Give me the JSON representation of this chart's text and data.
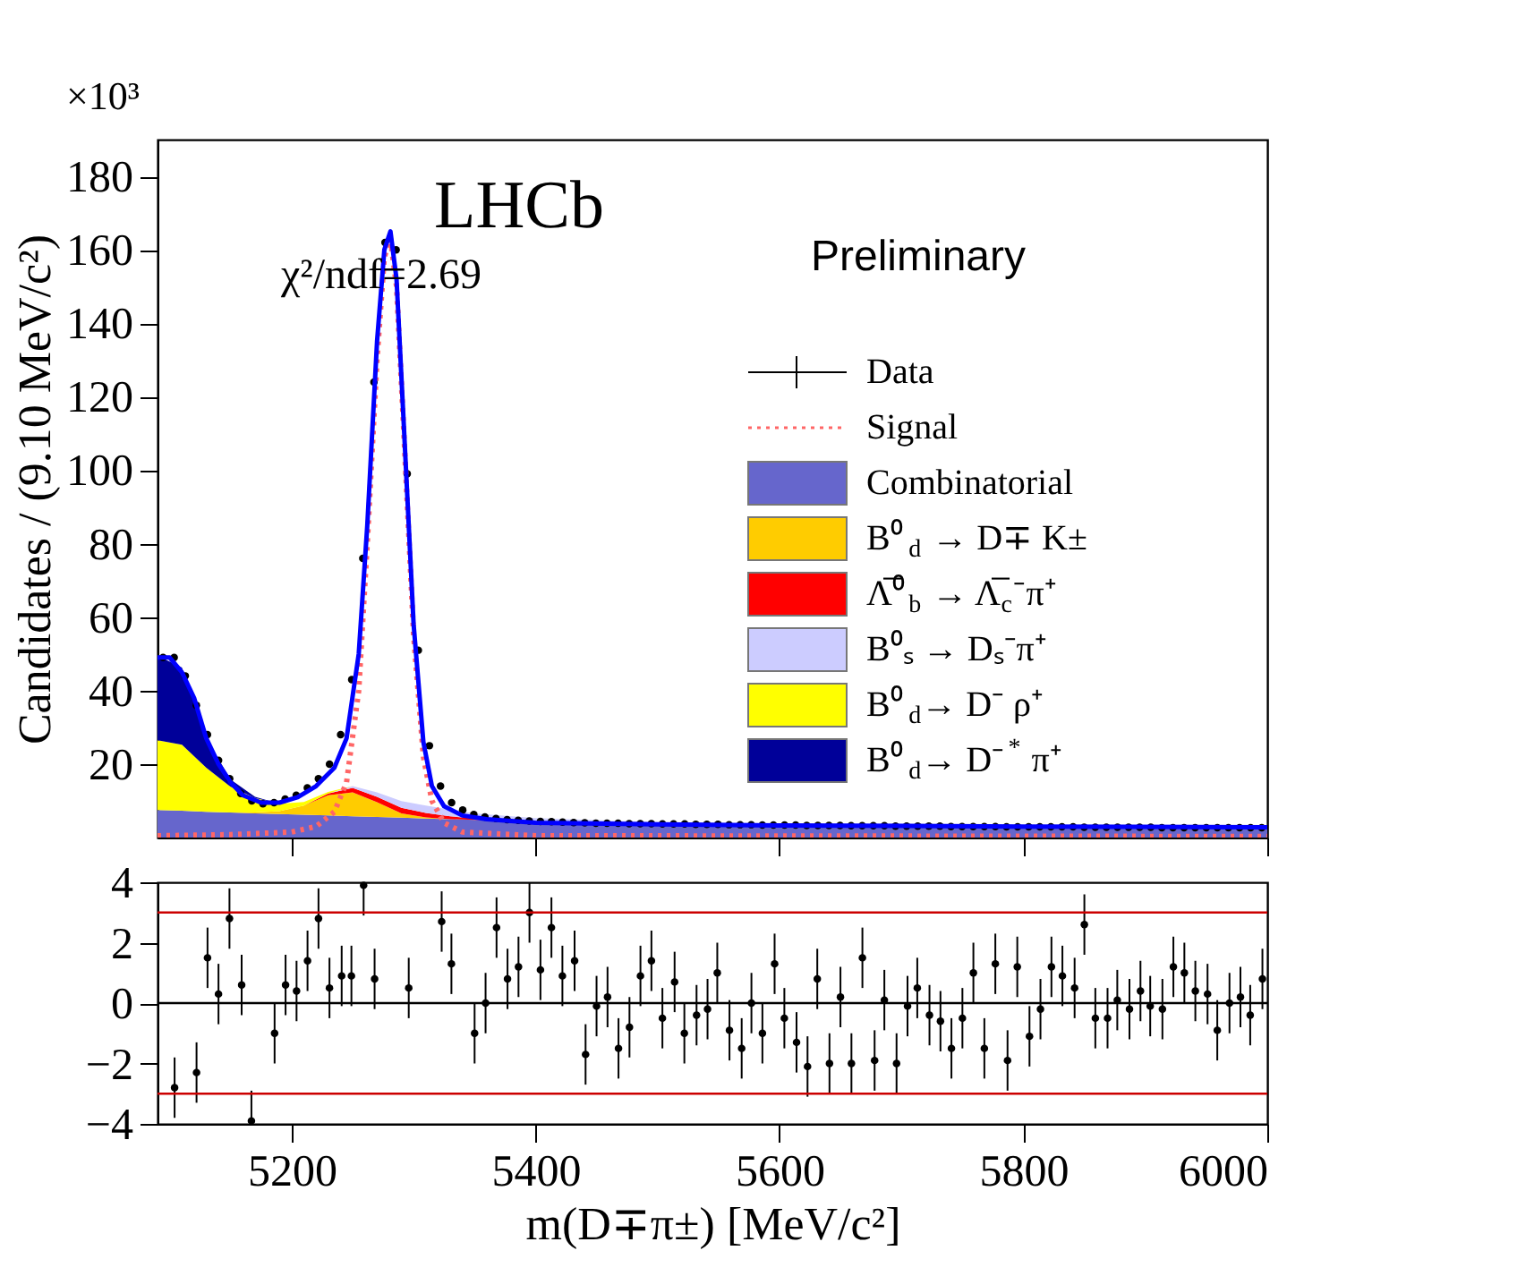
{
  "chart_data": [
    {
      "type": "area",
      "stacked": true,
      "ylabel": "Candidates / (9.10 MeV/c²)",
      "annotations": [
        "LHCb",
        "χ²/ndf=2.69",
        "Preliminary",
        "×10³"
      ],
      "xlim": [
        5090,
        6000
      ],
      "xticks": [
        5200,
        5400,
        5600,
        5800,
        6000
      ],
      "ylim": [
        0,
        190
      ],
      "yticks": [
        20,
        40,
        60,
        80,
        100,
        120,
        140,
        160,
        180
      ],
      "tick_labels": "y",
      "legend": "right",
      "grid": false,
      "x": [
        5090,
        5110,
        5130,
        5150,
        5170,
        5190,
        5210,
        5230,
        5250,
        5270,
        5290,
        5310,
        5330,
        5350,
        5400,
        5500,
        5600,
        5700,
        5800,
        5900,
        6000
      ],
      "series": [
        {
          "name": "Data",
          "type": "scatter",
          "marker": "circle",
          "color": "#000000",
          "x": [
            5094.55,
            5103.65,
            5112.75,
            5121.85,
            5130.95,
            5140.05,
            5149.15,
            5158.25,
            5167.35,
            5176.45,
            5185.55,
            5194.65,
            5203.75,
            5212.85,
            5221.95,
            5231.05,
            5240.15,
            5249.25,
            5258.35,
            5267.45,
            5276.55,
            5285.65,
            5294.75,
            5303.85,
            5312.95,
            5322.05,
            5331.15,
            5340.25,
            5349.35,
            5358.45,
            5367.55,
            5376.65,
            5385.75,
            5394.85,
            5403.95,
            5413.05,
            5422.15,
            5431.25,
            5440.35,
            5449.45,
            5458.55,
            5467.65,
            5476.75,
            5485.85,
            5494.95,
            5504.05,
            5513.15,
            5522.25,
            5531.35,
            5540.45,
            5549.55,
            5558.65,
            5567.75,
            5576.85,
            5585.95,
            5595.05,
            5604.15,
            5613.25,
            5622.35,
            5631.45,
            5640.55,
            5649.65,
            5658.75,
            5667.85,
            5676.95,
            5686.05,
            5695.15,
            5704.25,
            5713.35,
            5722.45,
            5731.55,
            5740.65,
            5749.75,
            5758.85,
            5767.95,
            5777.05,
            5786.15,
            5795.25,
            5804.35,
            5813.45,
            5822.55,
            5831.65,
            5840.75,
            5849.85,
            5858.95,
            5868.05,
            5877.15,
            5886.25,
            5895.35,
            5904.45,
            5913.55,
            5922.65,
            5931.75,
            5940.85,
            5949.95,
            5959.05,
            5968.15,
            5977.25,
            5986.35,
            5995.45
          ],
          "values": [
            49,
            49,
            44,
            36,
            28,
            21,
            16,
            12,
            10,
            9.2,
            9.5,
            10.5,
            11.5,
            13.5,
            16,
            20,
            28,
            43,
            76,
            124,
            162,
            160,
            99,
            51,
            25,
            14,
            9.5,
            7.5,
            6.3,
            5.6,
            5.2,
            4.9,
            4.7,
            4.5,
            4.4,
            4.3,
            4.2,
            4.1,
            4.0,
            3.9,
            3.9,
            3.9,
            3.8,
            3.8,
            3.8,
            3.7,
            3.7,
            3.7,
            3.6,
            3.6,
            3.6,
            3.5,
            3.5,
            3.5,
            3.4,
            3.4,
            3.4,
            3.4,
            3.3,
            3.3,
            3.3,
            3.3,
            3.2,
            3.2,
            3.2,
            3.2,
            3.1,
            3.1,
            3.1,
            3.1,
            3.1,
            3.0,
            3.0,
            3.0,
            3.0,
            3.0,
            2.9,
            2.9,
            2.9,
            2.9,
            2.9,
            2.9,
            2.9,
            2.8,
            2.8,
            2.8,
            2.8,
            2.8,
            2.8,
            2.8,
            2.7,
            2.7,
            2.7,
            2.7,
            2.7,
            2.7,
            2.7,
            2.7,
            2.7,
            2.7
          ]
        },
        {
          "name": "Signal",
          "type": "line",
          "line_style": "dotted",
          "color": "#ff6666",
          "x": [
            5090,
            5150,
            5200,
            5220,
            5235,
            5245,
            5255,
            5262,
            5270,
            5276,
            5281,
            5286,
            5292,
            5300,
            5308,
            5315,
            5325,
            5340,
            5400,
            6000
          ],
          "values": [
            0.5,
            0.8,
            1.5,
            3,
            7,
            15,
            40,
            80,
            130,
            158,
            163,
            150,
            110,
            55,
            22,
            10,
            4,
            1.5,
            0.5,
            0.3
          ]
        },
        {
          "name": "Combinatorial",
          "type": "area",
          "color": "#6666cc",
          "values": [
            7.5,
            7.3,
            7.0,
            6.8,
            6.6,
            6.4,
            6.2,
            6.0,
            5.8,
            5.6,
            5.4,
            5.2,
            5.0,
            4.8,
            4.5,
            4.0,
            3.7,
            3.4,
            3.2,
            3.0,
            2.9
          ]
        },
        {
          "name": "B⁰$_{d}$ → D∓ K±",
          "type": "area",
          "color": "#ffcc00",
          "values": [
            0,
            0,
            0,
            0,
            0.2,
            0.8,
            2.5,
            5.5,
            6.5,
            4,
            1.2,
            0.3,
            0,
            0,
            0,
            0,
            0,
            0,
            0,
            0,
            0
          ]
        },
        {
          "name": "Λ̅⁰$_{b}$ → Λ̅$_{c}$⁻π⁺",
          "type": "area",
          "color": "#ff0000",
          "values": [
            0,
            0,
            0,
            0,
            0,
            0,
            0,
            0.5,
            1.2,
            1.5,
            1.5,
            1.2,
            0.8,
            0.4,
            0,
            0,
            0,
            0,
            0,
            0,
            0
          ]
        },
        {
          "name": "B⁰ₛ → Dₛ⁻π⁺",
          "type": "area",
          "color": "#ccccff",
          "values": [
            0,
            0,
            0,
            0,
            0,
            0,
            0,
            0,
            0.5,
            1.2,
            1.8,
            2.0,
            1.8,
            1.4,
            0.8,
            0.2,
            0,
            0,
            0,
            0,
            0
          ]
        },
        {
          "name": "B⁰$_{d}$→ D⁻ ρ⁺",
          "type": "area",
          "color": "#ffff00",
          "values": [
            19,
            18,
            12,
            7,
            4,
            2,
            1,
            0.4,
            0,
            0,
            0,
            0,
            0,
            0,
            0,
            0,
            0,
            0,
            0,
            0,
            0
          ]
        },
        {
          "name": "B⁰$_{d}$→ D⁻$^{*}$ π⁺",
          "type": "area",
          "color": "#000099",
          "values": [
            23,
            21,
            8,
            2,
            0.3,
            0,
            0,
            0,
            0,
            0,
            0,
            0,
            0,
            0,
            0,
            0,
            0,
            0,
            0,
            0,
            0
          ]
        },
        {
          "type": "line",
          "line_style": "solid",
          "color": "#0000ff",
          "x": [
            5090,
            5100,
            5110,
            5120,
            5130,
            5140,
            5150,
            5160,
            5175,
            5190,
            5205,
            5220,
            5235,
            5245,
            5255,
            5262,
            5270,
            5276,
            5281,
            5286,
            5292,
            5300,
            5308,
            5315,
            5325,
            5340,
            5360,
            5400,
            5500,
            5600,
            5800,
            6000
          ],
          "values": [
            49,
            49,
            45,
            38,
            27,
            20,
            15,
            11.5,
            9.5,
            9.5,
            11,
            14,
            19,
            27,
            50,
            85,
            135,
            160,
            165,
            152,
            112,
            58,
            26,
            14,
            8.5,
            6,
            5,
            4,
            3.6,
            3.3,
            3.0,
            2.8
          ]
        }
      ]
    },
    {
      "type": "scatter",
      "marker": "circle",
      "xlabel": "m(D∓π±) [MeV/c²]",
      "xlim": [
        5090,
        6000
      ],
      "xticks": [
        5200,
        5400,
        5600,
        5800,
        6000
      ],
      "ylim": [
        -4,
        4
      ],
      "yticks": [
        -4,
        -2,
        0,
        2,
        4
      ],
      "grid": false,
      "ref_lines": [
        {
          "axis": "y",
          "value": 3,
          "color": "#cc0000"
        },
        {
          "axis": "y",
          "value": 0,
          "color": "#000000"
        },
        {
          "axis": "y",
          "value": -3,
          "color": "#cc0000"
        }
      ],
      "series": [
        {
          "color": "#000000",
          "x": [
            5104,
            5122,
            5131,
            5140,
            5149,
            5159,
            5167,
            5186,
            5195,
            5204,
            5213,
            5222,
            5231,
            5241,
            5249,
            5259,
            5268,
            5296,
            5323,
            5331,
            5350,
            5359,
            5368,
            5377,
            5386,
            5395,
            5404,
            5413,
            5422,
            5432,
            5441,
            5450,
            5459,
            5468,
            5477,
            5486,
            5495,
            5504,
            5514,
            5522,
            5532,
            5541,
            5549,
            5559,
            5569,
            5577,
            5586,
            5596,
            5604,
            5614,
            5623,
            5631,
            5641,
            5650,
            5659,
            5668,
            5678,
            5686,
            5696,
            5705,
            5713,
            5723,
            5732,
            5741,
            5750,
            5759,
            5768,
            5777,
            5787,
            5795,
            5805,
            5814,
            5823,
            5832,
            5842,
            5850,
            5859,
            5869,
            5877,
            5887,
            5896,
            5904,
            5914,
            5923,
            5932,
            5941,
            5951,
            5959,
            5969,
            5978,
            5986,
            5996
          ],
          "values": [
            -2.8,
            -2.3,
            1.5,
            0.3,
            2.8,
            0.6,
            -3.9,
            -1.0,
            0.6,
            0.4,
            1.4,
            2.8,
            0.5,
            0.9,
            0.9,
            3.9,
            0.8,
            0.5,
            2.7,
            1.3,
            -1.0,
            0.0,
            2.5,
            0.8,
            1.2,
            3.0,
            1.1,
            2.5,
            0.9,
            1.4,
            -1.7,
            -0.1,
            0.2,
            -1.5,
            -0.8,
            0.9,
            1.4,
            -0.5,
            0.7,
            -1.0,
            -0.4,
            -0.2,
            1.0,
            -0.9,
            -1.5,
            0.0,
            -1.0,
            1.3,
            -0.5,
            -1.3,
            -2.1,
            0.8,
            -2.0,
            0.2,
            -2.0,
            1.5,
            -1.9,
            0.1,
            -2.0,
            -0.1,
            0.5,
            -0.4,
            -0.6,
            -1.5,
            -0.5,
            1.0,
            -1.5,
            1.3,
            -1.9,
            1.2,
            -1.1,
            -0.2,
            1.2,
            0.9,
            0.5,
            2.6,
            -0.5,
            -0.5,
            0.1,
            -0.2,
            0.4,
            -0.1,
            -0.2,
            1.2,
            1.0,
            0.4,
            0.3,
            -0.9,
            0.0,
            0.2,
            -0.4,
            0.8
          ],
          "errors": [
            1,
            1,
            1,
            1,
            1,
            1,
            [
              -4,
              -2.9
            ],
            1,
            1,
            1,
            1,
            1,
            1,
            1,
            1,
            [
              2.9,
              4
            ],
            1,
            1,
            1,
            1,
            1,
            1,
            1,
            1,
            1,
            1,
            1,
            1,
            1,
            1,
            1,
            1,
            1,
            1,
            1,
            1,
            1,
            1,
            1,
            1,
            1,
            1,
            1,
            1,
            1,
            1,
            1,
            1,
            1,
            1,
            1,
            1,
            1,
            1,
            1,
            1,
            1,
            1,
            1,
            1,
            1,
            1,
            1,
            1,
            1,
            1,
            1,
            1,
            1,
            1,
            1,
            1,
            1,
            1,
            1,
            1,
            1,
            1,
            1,
            1,
            1,
            1,
            1,
            1,
            1,
            1,
            1,
            1,
            1,
            1,
            1,
            1
          ]
        }
      ]
    }
  ]
}
